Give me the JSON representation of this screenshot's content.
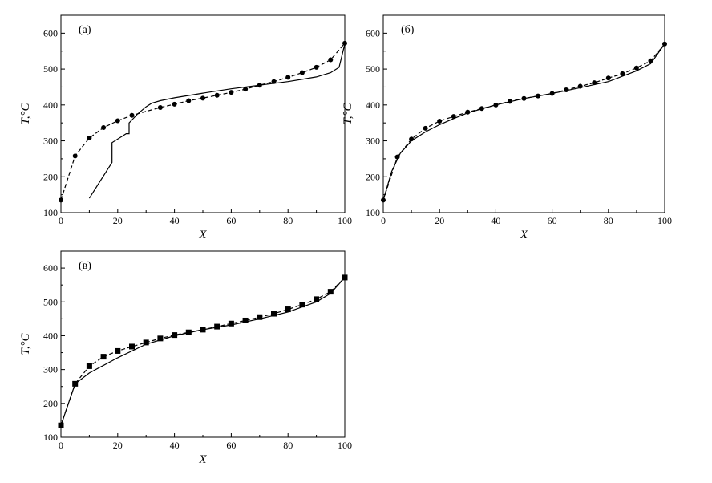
{
  "chart_data": [
    {
      "type": "line",
      "panel_label": "(а)",
      "xlabel": "X",
      "ylabel": "T,°C",
      "xlim": [
        0,
        100
      ],
      "ylim": [
        100,
        650
      ],
      "xticks": [
        "0",
        "20",
        "40",
        "60",
        "80",
        "100"
      ],
      "yticks": [
        "100",
        "200",
        "300",
        "400",
        "500",
        "600"
      ],
      "series": [
        {
          "style": "markers-dashed",
          "marker": "circle",
          "x": [
            0,
            5,
            10,
            15,
            20,
            25,
            35,
            40,
            45,
            50,
            55,
            60,
            65,
            70,
            75,
            80,
            85,
            90,
            95,
            100
          ],
          "y": [
            135,
            258,
            308,
            337,
            356,
            371,
            393,
            402,
            412,
            419,
            427,
            435,
            444,
            455,
            465,
            477,
            490,
            505,
            526,
            572
          ]
        },
        {
          "style": "solid",
          "x": [
            10,
            18,
            18,
            23,
            24,
            24,
            27,
            30,
            32,
            35,
            40,
            50,
            60,
            70,
            80,
            90,
            95,
            98,
            100
          ],
          "y": [
            140,
            240,
            295,
            320,
            320,
            350,
            375,
            395,
            405,
            412,
            420,
            433,
            445,
            455,
            465,
            478,
            490,
            505,
            570
          ]
        }
      ]
    },
    {
      "type": "line",
      "panel_label": "(б)",
      "xlabel": "X",
      "ylabel": "T,°C",
      "xlim": [
        0,
        100
      ],
      "ylim": [
        100,
        650
      ],
      "xticks": [
        "0",
        "20",
        "40",
        "60",
        "80",
        "100"
      ],
      "yticks": [
        "100",
        "200",
        "300",
        "400",
        "500",
        "600"
      ],
      "series": [
        {
          "style": "markers-dashed",
          "marker": "circle",
          "x": [
            0,
            5,
            10,
            15,
            20,
            25,
            30,
            35,
            40,
            45,
            50,
            55,
            60,
            65,
            70,
            75,
            80,
            85,
            90,
            95,
            100
          ],
          "y": [
            135,
            255,
            305,
            335,
            355,
            368,
            380,
            390,
            400,
            410,
            418,
            425,
            432,
            442,
            452,
            462,
            475,
            487,
            503,
            523,
            570
          ]
        },
        {
          "style": "solid",
          "x": [
            0,
            3,
            6,
            10,
            15,
            20,
            25,
            30,
            40,
            50,
            60,
            70,
            80,
            90,
            95,
            100
          ],
          "y": [
            135,
            215,
            265,
            300,
            325,
            345,
            362,
            378,
            400,
            418,
            432,
            448,
            465,
            495,
            515,
            570
          ]
        }
      ]
    },
    {
      "type": "line",
      "panel_label": "(в)",
      "xlabel": "X",
      "ylabel": "T,°C",
      "xlim": [
        0,
        100
      ],
      "ylim": [
        100,
        650
      ],
      "xticks": [
        "0",
        "20",
        "40",
        "60",
        "80",
        "100"
      ],
      "yticks": [
        "100",
        "200",
        "300",
        "400",
        "500",
        "600"
      ],
      "series": [
        {
          "style": "markers-dashed",
          "marker": "square",
          "x": [
            0,
            5,
            10,
            15,
            20,
            25,
            30,
            35,
            40,
            45,
            50,
            55,
            60,
            65,
            70,
            75,
            80,
            85,
            90,
            95,
            100
          ],
          "y": [
            135,
            258,
            310,
            338,
            355,
            368,
            380,
            392,
            402,
            410,
            418,
            427,
            436,
            445,
            455,
            465,
            478,
            492,
            508,
            530,
            572
          ]
        },
        {
          "style": "solid",
          "x": [
            0,
            5,
            10,
            20,
            30,
            40,
            50,
            60,
            70,
            80,
            90,
            95,
            100
          ],
          "y": [
            135,
            258,
            290,
            335,
            375,
            400,
            418,
            432,
            450,
            470,
            500,
            525,
            572
          ]
        }
      ]
    }
  ]
}
